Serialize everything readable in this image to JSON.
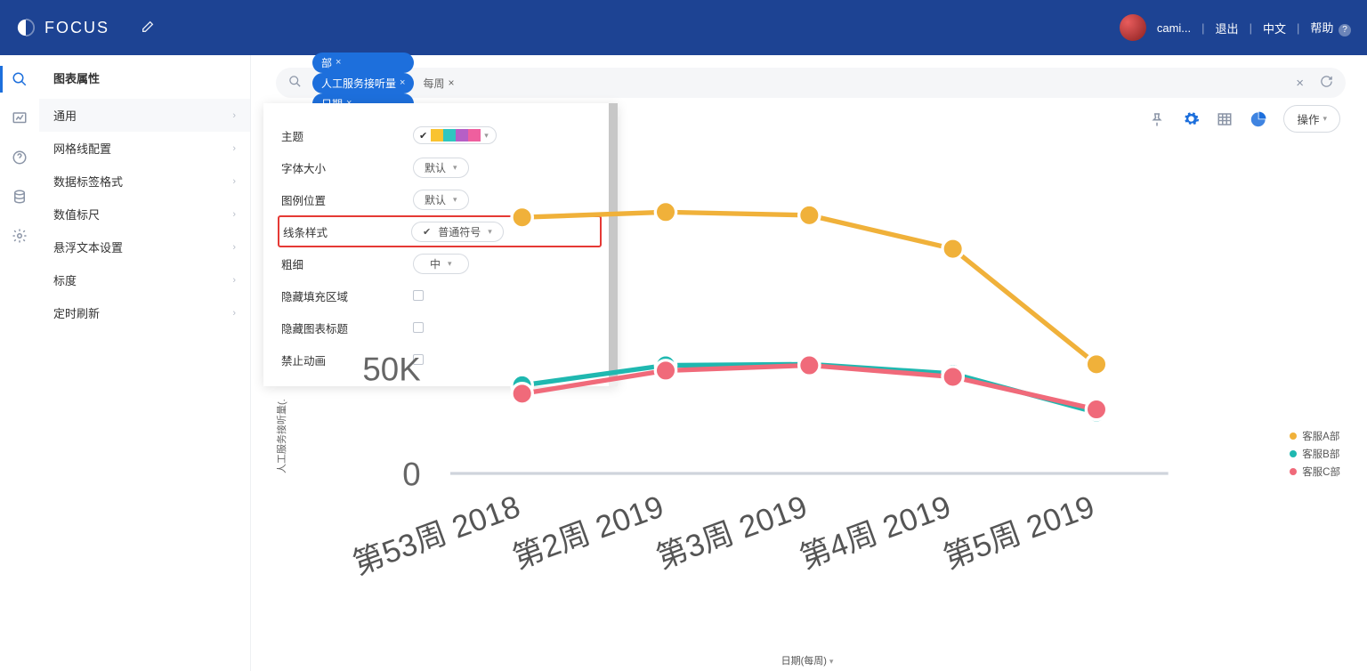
{
  "brand": "FOCUS",
  "user": {
    "name": "cami...",
    "logout": "退出",
    "lang": "中文",
    "help": "帮助"
  },
  "props_panel": {
    "title": "图表属性",
    "items": [
      {
        "label": "通用",
        "expanded": true
      },
      {
        "label": "网格线配置",
        "expanded": false
      },
      {
        "label": "数据标签格式",
        "expanded": false
      },
      {
        "label": "数值标尺",
        "expanded": false
      },
      {
        "label": "悬浮文本设置",
        "expanded": false
      },
      {
        "label": "标度",
        "expanded": false
      },
      {
        "label": "定时刷新",
        "expanded": false
      }
    ]
  },
  "search": {
    "pills": [
      {
        "label": "部"
      },
      {
        "label": "人工服务接听量"
      },
      {
        "label": "日期"
      }
    ],
    "plain": "每周"
  },
  "popover": {
    "theme_label": "主题",
    "palette": [
      "#f9c330",
      "#2fc6c0",
      "#b65fc6",
      "#ef5f9e"
    ],
    "font_size_label": "字体大小",
    "font_size_value": "默认",
    "legend_pos_label": "图例位置",
    "legend_pos_value": "默认",
    "line_style_label": "线条样式",
    "line_style_value": "普通符号",
    "thickness_label": "粗细",
    "thickness_value": "中",
    "hide_fill_label": "隐藏填充区域",
    "hide_title_label": "隐藏图表标题",
    "no_anim_label": "禁止动画"
  },
  "chart_actions": {
    "ops": "操作"
  },
  "chart": {
    "type": "line",
    "y_axis_title": "人工服务接听量(.",
    "x_axis_title": "日期(每周)",
    "x_labels": [
      "第53周 2018",
      "第2周 2019",
      "第3周 2019",
      "第4周 2019",
      "第5周 2019"
    ],
    "y_ticks": [
      {
        "v": 50000,
        "label": "50K"
      },
      {
        "v": 0,
        "label": "0"
      }
    ],
    "ylim": [
      0,
      130000
    ],
    "series": [
      {
        "name": "客服A部",
        "color": "#f0b13a",
        "data": [
          122000,
          124500,
          123000,
          107000,
          52000
        ]
      },
      {
        "name": "客服B部",
        "color": "#1fb8b0",
        "data": [
          42000,
          51500,
          52000,
          47500,
          29000
        ]
      },
      {
        "name": "客服C部",
        "color": "#f06a7a",
        "data": [
          38000,
          49000,
          51500,
          46000,
          30500
        ]
      }
    ],
    "marker_radius": 3.5,
    "line_width": 1.6,
    "grid_color": "#e9ebef",
    "axis_color": "#cfd4dc"
  }
}
